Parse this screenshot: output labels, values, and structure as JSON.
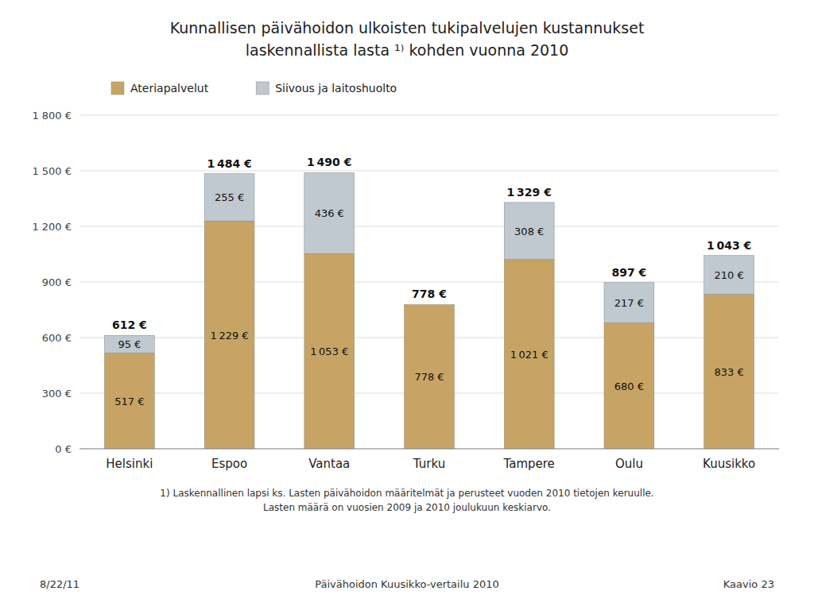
{
  "chart_data": {
    "type": "bar",
    "stacked": true,
    "title": "Kunnallisen päivähoidon ulkoisten tukipalvelujen kustannukset",
    "subtitle": "laskennallista lasta ¹⁾ kohden vuonna 2010",
    "categories": [
      "Helsinki",
      "Espoo",
      "Vantaa",
      "Turku",
      "Tampere",
      "Oulu",
      "Kuusikko"
    ],
    "series": [
      {
        "name": "Ateriapalvelut",
        "color": "#C8A464",
        "values": [
          517,
          1229,
          1053,
          778,
          1021,
          680,
          833
        ],
        "value_labels": [
          "517 €",
          "1 229 €",
          "1 053 €",
          "778 €",
          "1 021 €",
          "680 €",
          "833 €"
        ]
      },
      {
        "name": "Siivous ja laitoshuolto",
        "color": "#C0C8D0",
        "values": [
          95,
          255,
          436,
          0,
          308,
          217,
          210
        ],
        "value_labels": [
          "95 €",
          "255 €",
          "436 €",
          null,
          "308 €",
          "217 €",
          "210 €"
        ]
      }
    ],
    "totals": [
      612,
      1484,
      1490,
      778,
      1329,
      897,
      1043
    ],
    "total_labels": [
      "612 €",
      "1 484 €",
      "1 490 €",
      "778 €",
      "1 329 €",
      "897 €",
      "1 043 €"
    ],
    "data_labels": true,
    "ylim": [
      0,
      1800
    ],
    "yticks": [
      {
        "value": 0,
        "label": "0 €"
      },
      {
        "value": 300,
        "label": "300 €"
      },
      {
        "value": 600,
        "label": "600 €"
      },
      {
        "value": 900,
        "label": "900 €"
      },
      {
        "value": 1200,
        "label": "1 200 €"
      },
      {
        "value": 1500,
        "label": "1 500 €"
      },
      {
        "value": 1800,
        "label": "1 800 €"
      }
    ],
    "grid": true,
    "legend": "top",
    "annotations": [
      "1) Laskennallinen lapsi ks. Lasten päivähoidon määritelmät ja perusteet vuoden 2010 tietojen keruulle.",
      "Lasten määrä on vuosien 2009 ja 2010 joulukuun keskiarvo.",
      "8/22/11",
      "Päivähoidon Kuusikko-vertailu 2010",
      "Kaavio 23"
    ]
  }
}
